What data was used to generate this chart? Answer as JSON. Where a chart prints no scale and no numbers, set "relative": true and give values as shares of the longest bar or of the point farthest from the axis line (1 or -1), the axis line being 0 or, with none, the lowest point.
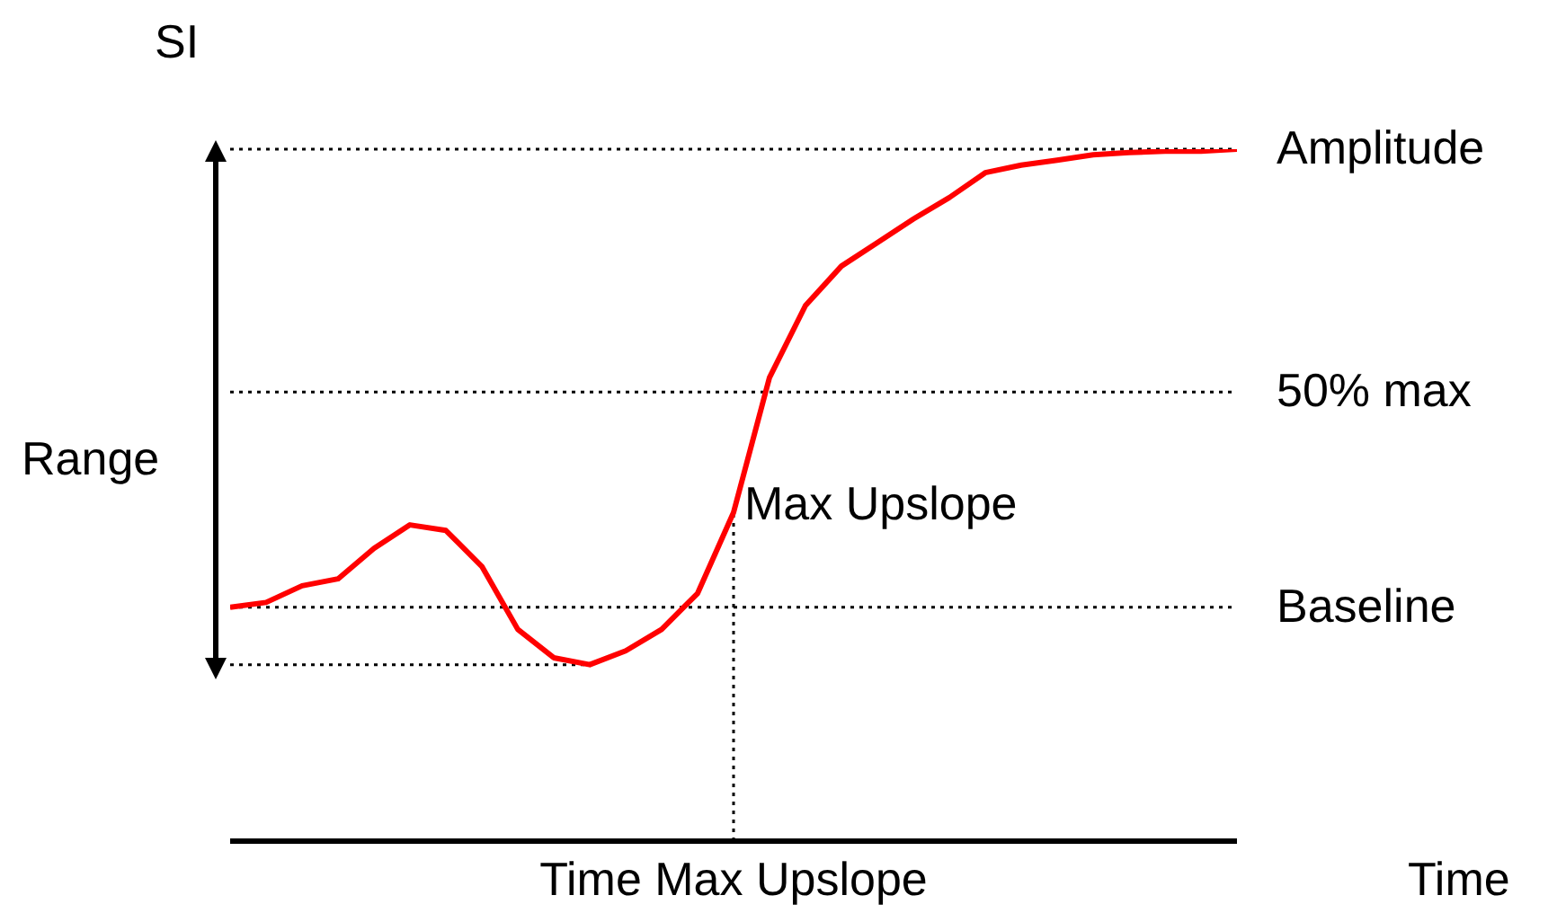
{
  "chart_data": {
    "type": "line",
    "relative": true,
    "xlabel": "Time",
    "ylabel": "SI",
    "categories": [
      null,
      null,
      null,
      null,
      null,
      null,
      null,
      null,
      null,
      null,
      null,
      null,
      null,
      null,
      null,
      null,
      null,
      null,
      null,
      null,
      null,
      null,
      null,
      null,
      null,
      null,
      null,
      null,
      null
    ],
    "series": [
      {
        "color": "#ff0000",
        "values": [
          0.338,
          0.345,
          0.369,
          0.379,
          0.423,
          0.457,
          0.449,
          0.397,
          0.306,
          0.265,
          0.255,
          0.275,
          0.306,
          0.358,
          0.475,
          0.67,
          0.774,
          0.831,
          0.865,
          0.899,
          0.93,
          0.966,
          0.977,
          0.984,
          0.992,
          0.995,
          0.997,
          0.997,
          1
        ]
      }
    ],
    "ref_lines": [
      {
        "axis": "y",
        "value": 1,
        "label": "Amplitude",
        "color": "#000000",
        "line_style": "dotted"
      },
      {
        "axis": "y",
        "value": 0.649,
        "label": "50% max",
        "color": "#000000",
        "line_style": "dotted"
      },
      {
        "axis": "y",
        "value": 0.338,
        "label": "Baseline",
        "color": "#000000",
        "line_style": "dotted"
      },
      {
        "axis": "y",
        "value": 0.255,
        "label": null,
        "color": "#000000",
        "line_style": "dotted"
      }
    ],
    "annotations": [
      "Range",
      "Max Upslope",
      "Time Max Upslope"
    ],
    "grid": false,
    "legend": false,
    "marker": "none",
    "line_style": "solid"
  }
}
